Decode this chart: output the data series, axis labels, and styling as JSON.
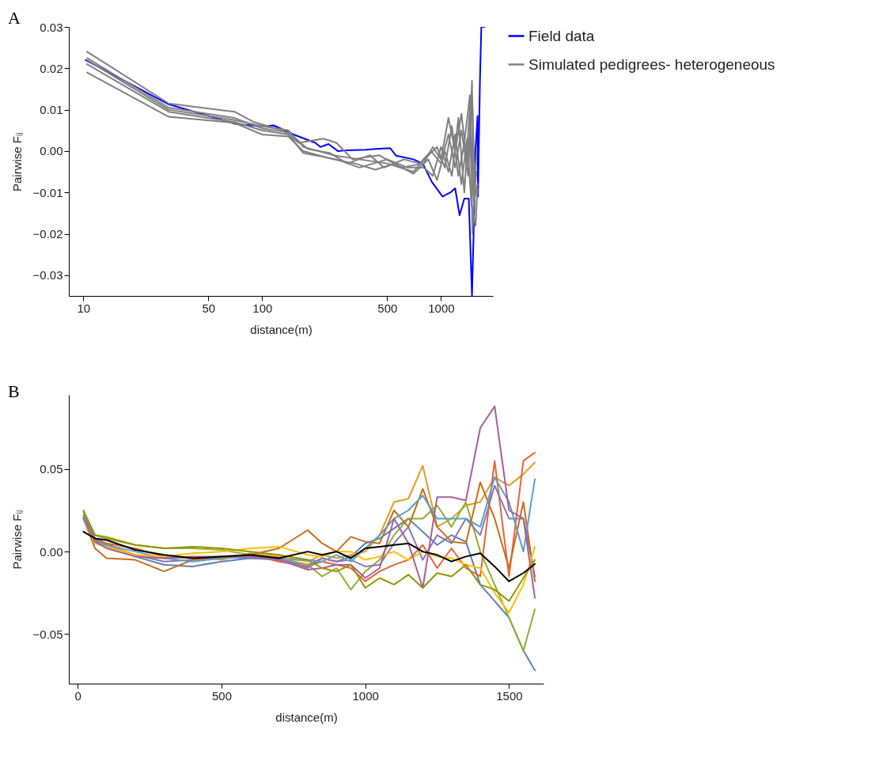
{
  "chart_data": [
    {
      "type": "line",
      "title": "A",
      "xlabel": "distance(m)",
      "ylabel": "Pairwise Fᵢⱼ",
      "log": "x",
      "legend": "right",
      "xlim": [
        8.3,
        1950
      ],
      "xticks": [
        10,
        50,
        100,
        500,
        1000
      ],
      "ylim": [
        -0.035,
        0.03
      ],
      "yticks": [
        0.03,
        0.02,
        0.01,
        {
          "value": 0,
          "label": "0.00"
        },
        -0.01,
        -0.02,
        -0.03
      ],
      "series": [
        {
          "name": "Field data",
          "color": "#0000ff",
          "x": [
            10.3,
            30,
            72,
            100,
            116,
            150,
            198,
            212,
            235,
            265,
            300,
            380,
            430,
            520,
            560,
            700,
            790,
            890,
            1020,
            1130,
            1200,
            1270,
            1350,
            1430,
            1490,
            1530,
            1560,
            1600,
            1610,
            1650,
            1680,
            1750
          ],
          "values": [
            0.022,
            0.0113,
            0.0065,
            0.006,
            0.0062,
            0.004,
            0.002,
            0.001,
            0.0017,
            0.0,
            0.0002,
            0.0003,
            0.0005,
            0.0007,
            -0.0011,
            -0.002,
            -0.003,
            -0.0075,
            -0.011,
            -0.01,
            -0.009,
            -0.0155,
            -0.0115,
            -0.0115,
            -0.035,
            -0.016,
            0.0005,
            0.0085,
            -0.011,
            0.0165,
            0.03,
            0.03
          ]
        },
        {
          "name": "Simulated pedigrees- heterogeneous",
          "color": "#808080",
          "x": [
            10.5,
            30,
            70,
            90,
            130,
            160,
            220,
            260,
            320,
            450,
            600,
            800,
            900,
            1000,
            1100,
            1200,
            1300,
            1400,
            1500,
            1550,
            1600
          ],
          "values": [
            0.024,
            0.0115,
            0.0095,
            0.007,
            0.005,
            0.002,
            0.003,
            0.002,
            -0.002,
            -0.001,
            -0.004,
            -0.003,
            0.001,
            -0.002,
            0.008,
            0.0,
            0.009,
            -0.003,
            0.011,
            -0.011,
            -0.008
          ]
        },
        {
          "color": "#808080",
          "x": [
            10.5,
            30,
            70,
            100,
            140,
            170,
            250,
            350,
            500,
            700,
            850,
            950,
            1050,
            1150,
            1250,
            1350,
            1450,
            1520,
            1580
          ],
          "values": [
            0.022,
            0.01,
            0.0075,
            0.006,
            0.005,
            0.001,
            -0.001,
            -0.002,
            -0.003,
            -0.005,
            -0.001,
            0.001,
            -0.004,
            0.006,
            -0.006,
            0.002,
            0.0135,
            -0.012,
            -0.005
          ]
        },
        {
          "color": "#808080",
          "x": [
            10.5,
            30,
            70,
            100,
            140,
            170,
            260,
            350,
            500,
            650,
            800,
            900,
            1000,
            1100,
            1200,
            1300,
            1400,
            1480,
            1560,
            1600
          ],
          "values": [
            0.021,
            0.0095,
            0.007,
            0.005,
            0.004,
            -0.0005,
            -0.002,
            -0.004,
            -0.002,
            -0.004,
            -0.004,
            -0.006,
            0.001,
            -0.005,
            0.004,
            -0.008,
            0.003,
            -0.013,
            -0.018,
            -0.009
          ]
        },
        {
          "color": "#808080",
          "x": [
            10.5,
            30,
            70,
            100,
            140,
            170,
            250,
            330,
            430,
            550,
            700,
            850,
            950,
            1050,
            1150,
            1250,
            1350,
            1450,
            1500,
            1560
          ],
          "values": [
            0.019,
            0.0083,
            0.0068,
            0.004,
            0.0035,
            0.0,
            -0.002,
            -0.003,
            -0.0045,
            -0.003,
            -0.0055,
            -0.002,
            -0.007,
            0.0,
            -0.006,
            0.008,
            -0.01,
            0.0105,
            -0.02,
            -0.003
          ]
        },
        {
          "color": "#808080",
          "x": [
            10.5,
            30,
            70,
            100,
            140,
            180,
            240,
            300,
            400,
            480,
            620,
            760,
            880,
            1000,
            1100,
            1200,
            1300,
            1420,
            1490,
            1530,
            1580
          ],
          "values": [
            0.0225,
            0.0105,
            0.008,
            0.0055,
            0.0045,
            0.0005,
            -0.0005,
            -0.003,
            -0.001,
            -0.004,
            -0.002,
            -0.003,
            0.0,
            -0.003,
            0.004,
            -0.004,
            0.005,
            -0.006,
            0.017,
            -0.013,
            0.0
          ]
        }
      ]
    },
    {
      "type": "line",
      "title": "B",
      "xlabel": "distance(m)",
      "ylabel": "Pairwise Fᵢⱼ",
      "xlim": [
        -31,
        1620
      ],
      "xticks": [
        0,
        500,
        1000,
        1500
      ],
      "ylim": [
        -0.08,
        0.095
      ],
      "yticks": [
        0.05,
        {
          "value": 0,
          "label": "0.00"
        },
        -0.05
      ],
      "x": [
        20,
        60,
        100,
        200,
        300,
        400,
        500,
        600,
        700,
        800,
        850,
        900,
        950,
        1000,
        1050,
        1100,
        1150,
        1200,
        1250,
        1300,
        1350,
        1400,
        1450,
        1500,
        1550,
        1590
      ],
      "series": [
        {
          "color": "#5e81b5",
          "values": [
            0.022,
            0.008,
            0.005,
            -0.003,
            -0.008,
            -0.009,
            -0.006,
            -0.004,
            -0.005,
            -0.008,
            -0.004,
            -0.006,
            -0.003,
            0.005,
            0.008,
            0.014,
            0.02,
            0.012,
            0.004,
            0.01,
            0.006,
            -0.02,
            -0.03,
            -0.04,
            -0.06,
            -0.072
          ]
        },
        {
          "color": "#e19c24",
          "values": [
            0.02,
            0.006,
            0.004,
            -0.002,
            -0.004,
            -0.003,
            -0.005,
            -0.001,
            -0.003,
            -0.006,
            -0.002,
            -0.004,
            -0.002,
            0.0,
            0.01,
            0.03,
            0.032,
            0.052,
            0.015,
            0.02,
            0.028,
            0.03,
            0.045,
            0.04,
            0.047,
            0.054
          ]
        },
        {
          "color": "#8fb032",
          "values": [
            0.025,
            0.01,
            0.009,
            0.004,
            0.002,
            0.002,
            0.001,
            -0.002,
            -0.004,
            -0.008,
            -0.015,
            -0.01,
            -0.023,
            -0.012,
            -0.005,
            0.01,
            0.02,
            0.02,
            0.028,
            0.015,
            0.03,
            0.0,
            -0.02,
            -0.04,
            -0.06,
            -0.035
          ]
        },
        {
          "color": "#eb6235",
          "values": [
            0.02,
            0.007,
            0.005,
            0.002,
            -0.003,
            -0.004,
            -0.003,
            -0.002,
            -0.006,
            -0.009,
            -0.006,
            -0.008,
            -0.01,
            -0.018,
            -0.012,
            -0.008,
            -0.005,
            0.004,
            -0.01,
            0.002,
            -0.01,
            -0.015,
            0.055,
            -0.015,
            0.055,
            0.06
          ]
        },
        {
          "color": "#8778b3",
          "values": [
            0.021,
            0.007,
            0.003,
            -0.002,
            -0.006,
            -0.005,
            -0.003,
            -0.004,
            -0.004,
            -0.01,
            -0.004,
            -0.006,
            -0.005,
            -0.009,
            -0.008,
            0.005,
            0.015,
            -0.005,
            0.01,
            0.005,
            0.02,
            0.01,
            0.04,
            0.02,
            0.02,
            -0.015
          ]
        },
        {
          "color": "#c56e1a",
          "values": [
            0.02,
            0.002,
            -0.004,
            -0.005,
            -0.012,
            -0.005,
            -0.004,
            -0.002,
            0.002,
            0.013,
            0.005,
            0.0,
            0.009,
            0.006,
            0.005,
            0.025,
            0.015,
            0.038,
            0.015,
            0.006,
            0.005,
            0.042,
            0.02,
            -0.01,
            0.03,
            -0.018
          ]
        },
        {
          "color": "#5d9ec7",
          "values": [
            0.02,
            0.006,
            0.004,
            0.0,
            -0.004,
            -0.006,
            -0.004,
            -0.003,
            -0.005,
            -0.005,
            -0.006,
            -0.002,
            -0.006,
            0.002,
            0.01,
            0.02,
            0.025,
            0.034,
            0.02,
            0.02,
            0.02,
            0.015,
            0.045,
            0.03,
            0.0,
            0.044
          ]
        },
        {
          "color": "#ffbf00",
          "values": [
            0.02,
            0.005,
            0.003,
            -0.002,
            -0.003,
            -0.001,
            0.0,
            0.002,
            0.003,
            -0.002,
            -0.003,
            0.0,
            0.0,
            -0.005,
            -0.003,
            0.0,
            -0.005,
            0.0,
            -0.003,
            -0.004,
            -0.008,
            -0.01,
            -0.025,
            -0.037,
            -0.02,
            0.003
          ]
        },
        {
          "color": "#a5609d",
          "values": [
            0.02,
            0.006,
            0.002,
            -0.003,
            -0.004,
            -0.003,
            -0.003,
            -0.003,
            -0.005,
            -0.011,
            -0.01,
            -0.008,
            -0.008,
            -0.016,
            -0.01,
            0.02,
            0.005,
            -0.022,
            0.033,
            0.033,
            0.031,
            0.075,
            0.088,
            0.025,
            0.02,
            -0.028
          ]
        },
        {
          "color": "#929600",
          "values": [
            0.024,
            0.01,
            0.008,
            0.004,
            0.002,
            0.003,
            0.002,
            0.0,
            -0.002,
            -0.005,
            -0.01,
            -0.012,
            -0.008,
            -0.022,
            -0.016,
            -0.02,
            -0.014,
            -0.022,
            -0.013,
            -0.015,
            -0.008,
            -0.02,
            -0.023,
            -0.03,
            -0.016,
            -0.005
          ]
        },
        {
          "color": "#000000",
          "values": [
            0.012,
            0.008,
            0.007,
            0.001,
            -0.002,
            -0.004,
            -0.003,
            -0.002,
            -0.004,
            0.0,
            -0.002,
            0.0,
            -0.004,
            0.002,
            0.003,
            0.004,
            0.005,
            0.0,
            -0.002,
            -0.006,
            -0.003,
            -0.001,
            -0.009,
            -0.018,
            -0.013,
            -0.0075
          ]
        }
      ]
    }
  ]
}
